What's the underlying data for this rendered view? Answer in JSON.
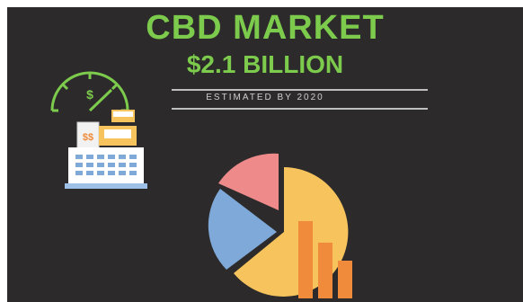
{
  "header": {
    "title": "CBD MARKET",
    "value": "$2.1 BILLION",
    "note": "ESTIMATED BY 2020"
  },
  "illustration": {
    "register_icon": "cash-register-icon",
    "gauge_icon": "speedometer-dollar-icon",
    "gauge_symbol": "$",
    "register_display": "$$",
    "chart_icon": "pie-and-bar-chart-icon"
  },
  "colors": {
    "background": "#2c2a2b",
    "accent_green": "#7ccb4c",
    "pie_yellow": "#f7c35c",
    "pie_blue": "#7fa9d8",
    "pie_pink": "#ee8a8a",
    "bar_orange": "#ef8b3a"
  }
}
